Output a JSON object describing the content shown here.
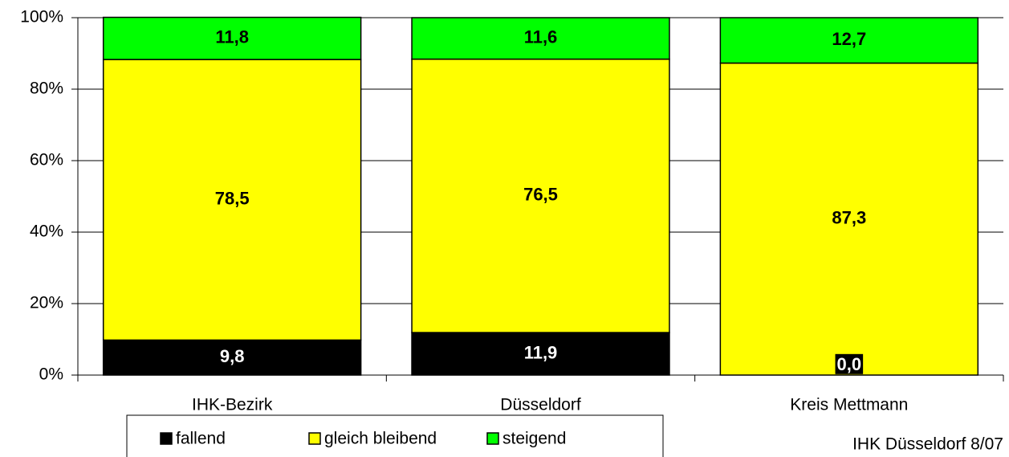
{
  "chart_data": {
    "type": "stacked_bar",
    "categories": [
      "IHK-Bezirk",
      "Düsseldorf",
      "Kreis Mettmann"
    ],
    "series": [
      {
        "name": "fallend",
        "color": "#000000",
        "label_color": "#ffffff",
        "values": [
          9.8,
          11.9,
          0.0
        ],
        "value_labels": [
          "9,8",
          "11,9",
          "0,0"
        ]
      },
      {
        "name": "gleich bleibend",
        "color": "#ffff00",
        "label_color": "#000000",
        "values": [
          78.5,
          76.5,
          87.3
        ],
        "value_labels": [
          "78,5",
          "76,5",
          "87,3"
        ]
      },
      {
        "name": "steigend",
        "color": "#00ff00",
        "label_color": "#000000",
        "values": [
          11.8,
          11.6,
          12.7
        ],
        "value_labels": [
          "11,8",
          "11,6",
          "12,7"
        ]
      }
    ],
    "ylim": [
      0,
      100
    ],
    "yticks": [
      {
        "value": 0,
        "label": "0%"
      },
      {
        "value": 20,
        "label": "20%"
      },
      {
        "value": 40,
        "label": "40%"
      },
      {
        "value": 60,
        "label": "60%"
      },
      {
        "value": 80,
        "label": "80%"
      },
      {
        "value": 100,
        "label": "100%"
      }
    ],
    "grid": true,
    "legend": "bottom",
    "source": "IHK Düsseldorf 8/07"
  }
}
